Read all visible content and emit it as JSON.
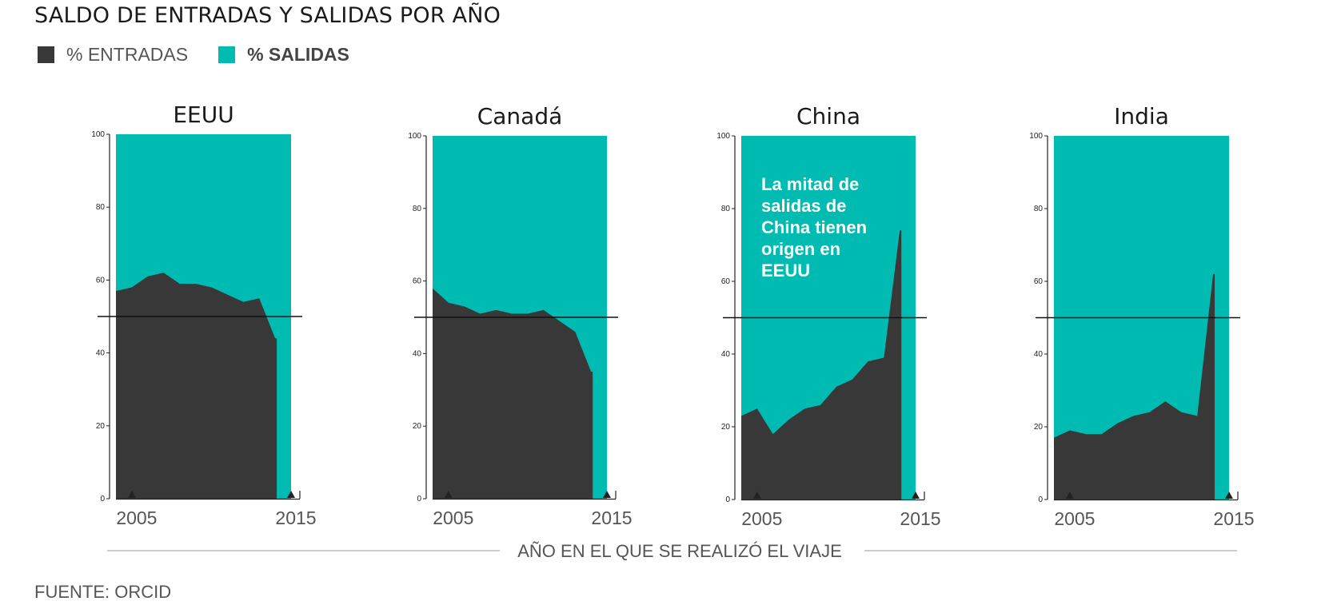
{
  "title": "SALDO DE ENTRADAS Y SALIDAS POR AÑO",
  "legend": {
    "entradas_label": "% ENTRADAS",
    "salidas_label": "% SALIDAS"
  },
  "colors": {
    "entradas": "#383838",
    "salidas": "#00bbb1",
    "reference_line": "#111111",
    "axis": "#222222",
    "xlabel_rule": "#bbbbbb"
  },
  "xaxis_label": "AÑO EN EL QUE SE REALIZÓ EL VIAJE",
  "source": "FUENTE: ORCID",
  "chart_data": [
    {
      "type": "area",
      "title": "EEUU",
      "x": [
        2004,
        2005,
        2006,
        2007,
        2008,
        2009,
        2010,
        2011,
        2012,
        2013,
        2014,
        2015
      ],
      "series": [
        {
          "name": "% ENTRADAS",
          "values": [
            57,
            58,
            61,
            62,
            59,
            59,
            58,
            56,
            54,
            55,
            44,
            null
          ]
        }
      ],
      "ylim": [
        0,
        100
      ],
      "yticks": [
        0,
        20,
        40,
        60,
        80,
        100
      ],
      "xticks": [
        2005,
        2015
      ],
      "reference_line": 50
    },
    {
      "type": "area",
      "title": "Canadá",
      "x": [
        2004,
        2005,
        2006,
        2007,
        2008,
        2009,
        2010,
        2011,
        2012,
        2013,
        2014,
        2015
      ],
      "series": [
        {
          "name": "% ENTRADAS",
          "values": [
            58,
            54,
            53,
            51,
            52,
            51,
            51,
            52,
            49,
            46,
            35,
            null
          ]
        }
      ],
      "ylim": [
        0,
        100
      ],
      "yticks": [
        0,
        20,
        40,
        60,
        80,
        100
      ],
      "xticks": [
        2005,
        2015
      ],
      "reference_line": 50
    },
    {
      "type": "area",
      "title": "China",
      "x": [
        2004,
        2005,
        2006,
        2007,
        2008,
        2009,
        2010,
        2011,
        2012,
        2013,
        2014,
        2015
      ],
      "series": [
        {
          "name": "% ENTRADAS",
          "values": [
            23,
            25,
            18,
            22,
            25,
            26,
            31,
            33,
            38,
            39,
            74,
            null
          ]
        }
      ],
      "ylim": [
        0,
        100
      ],
      "yticks": [
        0,
        20,
        40,
        60,
        80,
        100
      ],
      "xticks": [
        2005,
        2015
      ],
      "reference_line": 50,
      "annotation": [
        "La mitad de",
        "salidas de",
        "China tienen",
        "origen en",
        "EEUU"
      ]
    },
    {
      "type": "area",
      "title": "India",
      "x": [
        2004,
        2005,
        2006,
        2007,
        2008,
        2009,
        2010,
        2011,
        2012,
        2013,
        2014,
        2015
      ],
      "series": [
        {
          "name": "% ENTRADAS",
          "values": [
            17,
            19,
            18,
            18,
            21,
            23,
            24,
            27,
            24,
            23,
            62,
            null
          ]
        }
      ],
      "ylim": [
        0,
        100
      ],
      "yticks": [
        0,
        20,
        40,
        60,
        80,
        100
      ],
      "xticks": [
        2005,
        2015
      ],
      "reference_line": 50
    }
  ]
}
